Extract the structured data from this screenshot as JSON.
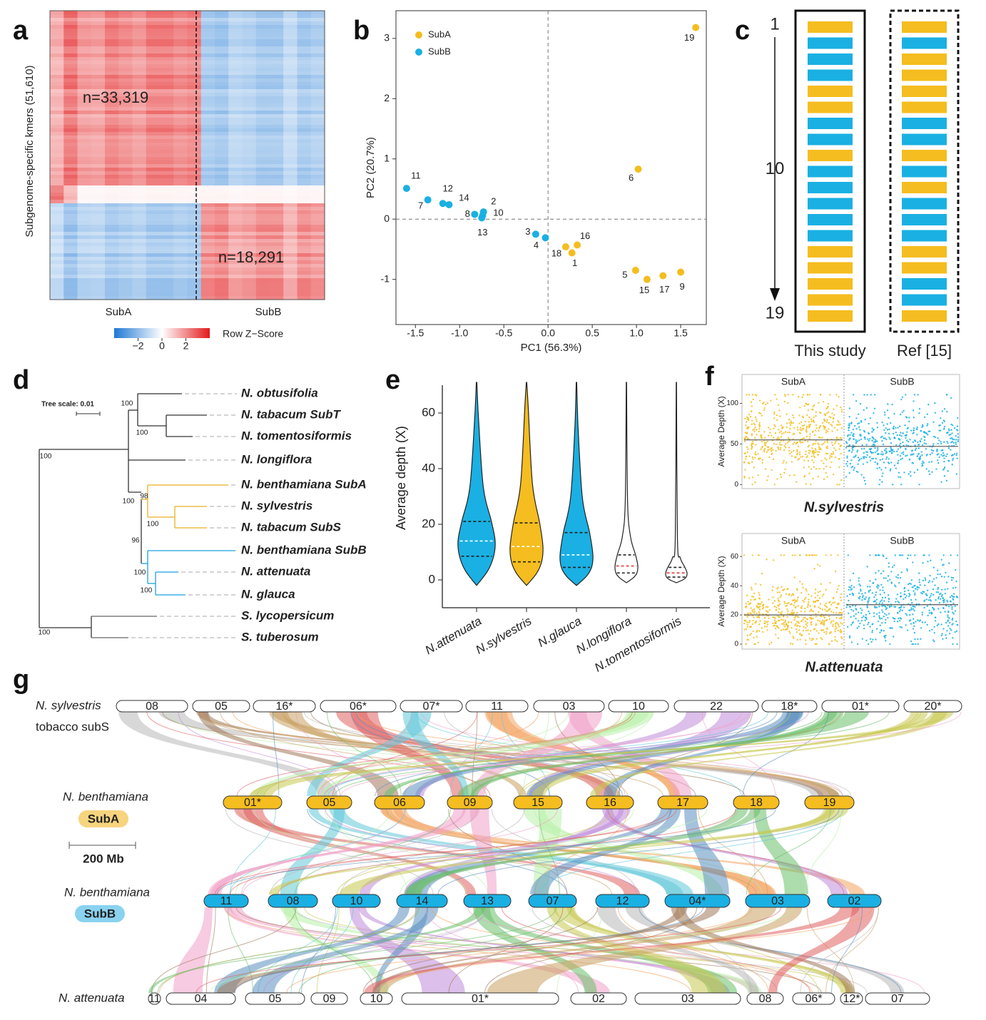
{
  "panel_labels": [
    "a",
    "b",
    "c",
    "d",
    "e",
    "f",
    "g"
  ],
  "heatmap": {
    "ylabel": "Subgenome-specific kmers (51,610)",
    "annotations": [
      "n=33,319",
      "n=18,291"
    ],
    "columns": [
      "SubA",
      "SubB"
    ],
    "colorbar": {
      "title": "Row Z−Score",
      "lim": [
        -4,
        4
      ],
      "ticks": [
        {
          "value": -2,
          "label": "−2"
        },
        0,
        2
      ]
    }
  },
  "chart_data": [
    {
      "type": "scatter",
      "xlabel": "PC1 (56.3%)",
      "ylabel": "PC2 (20.7%)",
      "xlim": [
        -1.72,
        1.79
      ],
      "ylim": [
        -1.75,
        3.46
      ],
      "xticks": [
        -1.5,
        {
          "value": -1,
          "label": "-1.0"
        },
        -0.5,
        {
          "value": 0,
          "label": "0.0"
        },
        0.5,
        {
          "value": 1,
          "label": "1.0"
        },
        1.5
      ],
      "yticks": [
        -1,
        0,
        1,
        2,
        3
      ],
      "legend": "upper left",
      "series": [
        {
          "name": "SubA",
          "color": "#f5bd1f",
          "labels": [
            "19",
            "6",
            "16",
            "18",
            "1",
            "5",
            "15",
            "17",
            "9"
          ],
          "x": [
            1.67,
            1.02,
            0.33,
            0.2,
            0.27,
            0.99,
            1.12,
            1.3,
            1.5
          ],
          "values": [
            3.18,
            0.83,
            -0.43,
            -0.46,
            -0.56,
            -0.85,
            -1.0,
            -0.94,
            -0.88
          ]
        },
        {
          "name": "SubB",
          "color": "#1ab0e3",
          "labels": [
            "11",
            "7",
            "12",
            "14",
            "8",
            "2",
            "10",
            "13",
            "3",
            "4"
          ],
          "x": [
            -1.6,
            -1.36,
            -1.19,
            -1.12,
            -0.83,
            -0.73,
            -0.74,
            -0.75,
            -0.14,
            -0.03
          ],
          "values": [
            0.51,
            0.32,
            0.26,
            0.24,
            0.08,
            0.12,
            0.06,
            0.02,
            -0.25,
            -0.31
          ]
        }
      ]
    },
    {
      "type": "violin",
      "ylabel": "Average depth (X)",
      "categories": [
        "N.attenuata",
        "N.sylvestris",
        "N.glauca",
        "N.longiflora",
        "N.tomentosiformis"
      ],
      "values": [
        14,
        12,
        9,
        5,
        2.5
      ],
      "q1": [
        8.5,
        6.5,
        4.5,
        2.5,
        1
      ],
      "q3": [
        21,
        20.5,
        17,
        9,
        4.5
      ],
      "mins": [
        -2,
        -2,
        -2,
        -1,
        -1
      ],
      "maxes": [
        71,
        71,
        71,
        71,
        71
      ],
      "colors": [
        "#1ab0e3",
        "#f5bd1f",
        "#1ab0e3",
        "#ffffff",
        "#ffffff"
      ],
      "median_colors": [
        "#ffffff",
        "#ffffff",
        "#ffffff",
        "#e03030",
        "#e03030"
      ],
      "ylim": [
        -10,
        70
      ],
      "yticks": [
        0,
        20,
        40,
        60
      ]
    }
  ],
  "order": {
    "axis_ticks": [
      1,
      10,
      19
    ],
    "columns": [
      {
        "label": "This study",
        "colors": [
          "#f5bd1f",
          "#1ab0e3",
          "#1ab0e3",
          "#1ab0e3",
          "#f5bd1f",
          "#f5bd1f",
          "#1ab0e3",
          "#1ab0e3",
          "#f5bd1f",
          "#1ab0e3",
          "#1ab0e3",
          "#1ab0e3",
          "#1ab0e3",
          "#1ab0e3",
          "#f5bd1f",
          "#f5bd1f",
          "#f5bd1f",
          "#f5bd1f",
          "#f5bd1f"
        ]
      },
      {
        "label": "Ref [15]",
        "colors": [
          "#f5bd1f",
          "#1ab0e3",
          "#f5bd1f",
          "#f5bd1f",
          "#f5bd1f",
          "#f5bd1f",
          "#1ab0e3",
          "#1ab0e3",
          "#f5bd1f",
          "#1ab0e3",
          "#f5bd1f",
          "#1ab0e3",
          "#1ab0e3",
          "#1ab0e3",
          "#f5bd1f",
          "#f5bd1f",
          "#1ab0e3",
          "#1ab0e3",
          "#f5bd1f"
        ]
      }
    ]
  },
  "tree": {
    "scale": "Tree scale: 0.01",
    "leaves": [
      {
        "name": "N. obtusifolia",
        "color": "#111111"
      },
      {
        "name": "N. tabacum SubT",
        "color": "#111111"
      },
      {
        "name": "N. tomentosiformis",
        "color": "#111111"
      },
      {
        "name": "N. longiflora",
        "color": "#111111"
      },
      {
        "name": "N. benthamiana SubA",
        "color": "#e8b020"
      },
      {
        "name": "N. sylvestris",
        "color": "#e8b020"
      },
      {
        "name": "N. tabacum SubS",
        "color": "#e8b020"
      },
      {
        "name": "N. benthamiana SubB",
        "color": "#1aa0e0"
      },
      {
        "name": "N. attenuata",
        "color": "#1aa0e0"
      },
      {
        "name": "N. glauca",
        "color": "#1aa0e0"
      },
      {
        "name": "S. lycopersicum",
        "color": "#555555"
      },
      {
        "name": "S. tuberosum",
        "color": "#555555"
      }
    ],
    "bootstrap": [
      100,
      100,
      100,
      98,
      100,
      100,
      96,
      100,
      100,
      100
    ]
  },
  "depth": {
    "colors": [
      "#f5bd1f",
      "#1ab0e3"
    ],
    "panels": [
      {
        "title": "N.sylvestris",
        "groups": [
          "SubA",
          "SubB"
        ],
        "ylabel": "Average Depth (X)",
        "ylim": [
          -5,
          118
        ],
        "yticks": [
          0,
          50,
          100
        ],
        "means": [
          55,
          47
        ]
      },
      {
        "title": "N.attenuata",
        "groups": [
          "SubA",
          "SubB"
        ],
        "ylabel": "Average Depth (X)",
        "ylim": [
          -3.4,
          65
        ],
        "yticks": [
          0,
          20,
          40,
          60
        ],
        "means": [
          20,
          27
        ]
      }
    ]
  },
  "synteny": {
    "scale": "200 Mb",
    "rows": [
      {
        "species": "N. sylvestris",
        "subtitle": "tobacco subS",
        "color": "#ffffff",
        "chromosomes": [
          "08",
          "05",
          "16*",
          "06*",
          "07*",
          "11",
          "03",
          "10",
          "22",
          "18*",
          "01*",
          "20*"
        ]
      },
      {
        "species": "N. benthamiana",
        "badge": "SubA",
        "color": "#f5bd1f",
        "chromosomes": [
          "01*",
          "05",
          "06",
          "09",
          "15",
          "16",
          "17",
          "18",
          "19"
        ]
      },
      {
        "species": "N. benthamiana",
        "badge": "SubB",
        "color": "#1ab0e3",
        "chromosomes": [
          "11",
          "08",
          "10",
          "14",
          "13",
          "07",
          "12",
          "04*",
          "03",
          "02"
        ]
      },
      {
        "species": "N. attenuata",
        "color": "#ffffff",
        "chromosomes": [
          "11",
          "04",
          "05",
          "09",
          "10",
          "01*",
          "02",
          "03",
          "08",
          "06*",
          "12*",
          "07"
        ]
      }
    ]
  }
}
